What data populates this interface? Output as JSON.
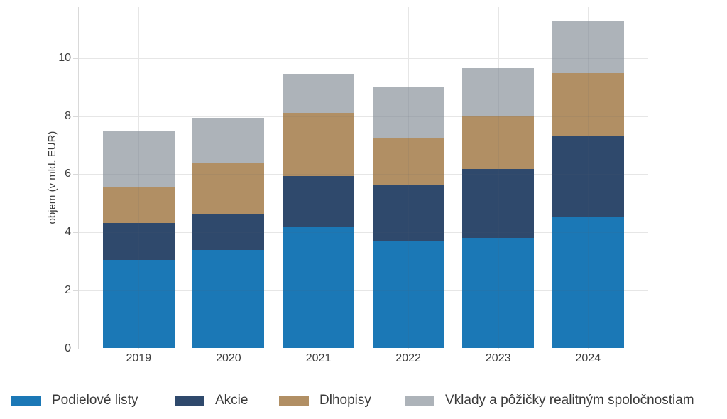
{
  "chart_data": {
    "type": "bar",
    "stacked": true,
    "title": "",
    "xlabel": "",
    "ylabel": "objem (v mld. EUR)",
    "categories": [
      "2019",
      "2020",
      "2021",
      "2022",
      "2023",
      "2024"
    ],
    "series": [
      {
        "name": "Podielové listy",
        "color": "#1b78b6",
        "values": [
          3.05,
          3.4,
          4.2,
          3.7,
          3.8,
          4.55
        ]
      },
      {
        "name": "Akcie",
        "color": "#2f496c",
        "values": [
          1.28,
          1.22,
          1.73,
          1.95,
          2.38,
          2.78
        ]
      },
      {
        "name": "Dlhopisy",
        "color": "#b18f64",
        "values": [
          1.2,
          1.78,
          2.18,
          1.6,
          1.8,
          2.15
        ]
      },
      {
        "name": "Vklady a pôžičky realitným spoločnostiam",
        "color": "#adb3b9",
        "values": [
          1.96,
          1.53,
          1.35,
          1.75,
          1.67,
          1.8
        ]
      }
    ],
    "totals": [
      7.49,
      7.93,
      9.46,
      9.0,
      9.65,
      11.28
    ],
    "yticks": [
      0,
      2,
      4,
      6,
      8,
      10
    ],
    "ylim": [
      0,
      11.76
    ],
    "grid": true,
    "legend_position": "bottom",
    "colors": {
      "background": "#ffffff",
      "gridline": "#e6e6e6",
      "axis_line": "#d9d9d9",
      "tick_text": "#3d3d3d",
      "legend_text": "#3a3a3a"
    }
  }
}
